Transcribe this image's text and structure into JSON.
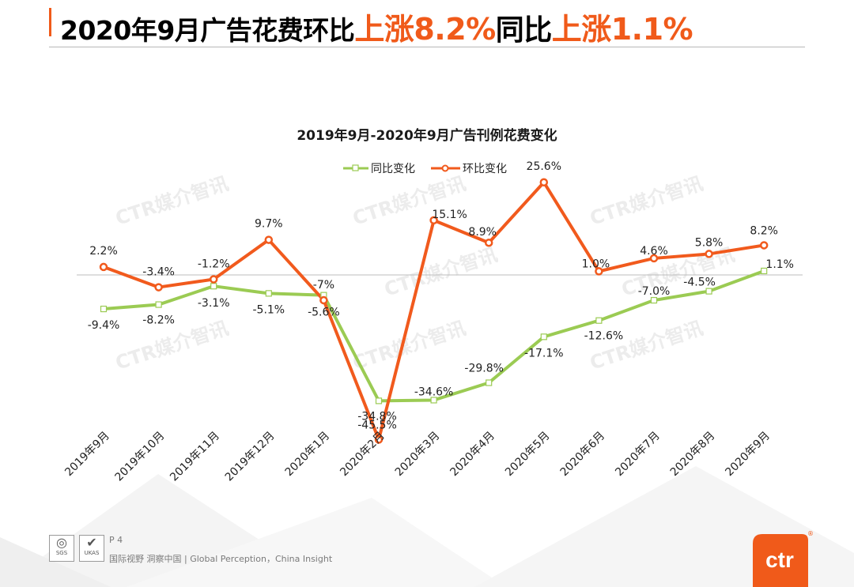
{
  "header": {
    "title_prefix": "2020年9月广告花费环比",
    "mom_label": "上涨8.2%",
    "yoy_word": "同比",
    "yoy_label": "上涨1.1%"
  },
  "chart_data": {
    "type": "line",
    "title": "2019年9月-2020年9月广告刊例花费变化",
    "categories": [
      "2019年9月",
      "2019年10月",
      "2019年11月",
      "2019年12月",
      "2020年1月",
      "2020年2月",
      "2020年3月",
      "2020年4月",
      "2020年5月",
      "2020年6月",
      "2020年7月",
      "2020年8月",
      "2020年9月"
    ],
    "series": [
      {
        "name": "同比变化",
        "values": [
          -9.4,
          -8.2,
          -3.1,
          -5.1,
          -5.6,
          -34.8,
          -34.6,
          -29.8,
          -17.1,
          -12.6,
          -7.0,
          -4.5,
          1.1
        ],
        "labels": [
          "-9.4%",
          "-8.2%",
          "-3.1%",
          "-5.1%",
          "-5.6%",
          "-34.8%",
          "-34.6%",
          "-29.8%",
          "-17.1%",
          "-12.6%",
          "-7.0%",
          "-4.5%",
          "1.1%"
        ]
      },
      {
        "name": "环比变化",
        "values": [
          2.2,
          -3.4,
          -1.2,
          9.7,
          -7,
          -45.5,
          15.1,
          8.9,
          25.6,
          1.0,
          4.6,
          5.8,
          8.2
        ],
        "labels": [
          "2.2%",
          "-3.4%",
          "-1.2%",
          "9.7%",
          "-7%",
          "-45.5%",
          "15.1%",
          "8.9%",
          "25.6%",
          "1.0%",
          "4.6%",
          "5.8%",
          "8.2%"
        ]
      }
    ],
    "colors": {
      "同比变化": "#9bcb53",
      "环比变化": "#f15a1d"
    },
    "watermark": "CTR媒介智讯",
    "legend_position": "top-center",
    "xlabel": "",
    "ylabel": "",
    "gridlines": false
  },
  "footer": {
    "page": "P 4",
    "tagline": "国际视野  洞察中国 |  Global Perception，China Insight",
    "cert1": "SGS",
    "cert2": "UKAS"
  },
  "logo": {
    "text": "ctr",
    "color": "#f05a1a"
  }
}
